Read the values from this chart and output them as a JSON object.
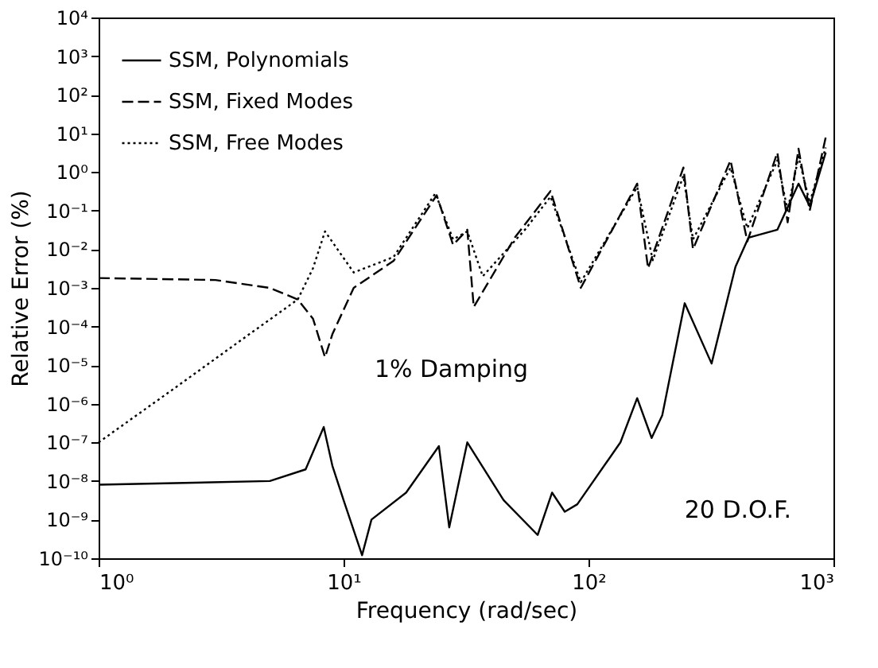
{
  "chart_data": {
    "type": "line",
    "xlabel": "Frequency (rad/sec)",
    "ylabel": "Relative Error (%)",
    "log": "xy",
    "legend": "top left",
    "xlim": [
      1,
      1000
    ],
    "ylim": [
      1e-10,
      10000
    ],
    "xticks": [
      {
        "value": 1,
        "label": "10⁰"
      },
      {
        "value": 10,
        "label": "10¹"
      },
      {
        "value": 100,
        "label": "10²"
      },
      {
        "value": 1000,
        "label": "10³"
      }
    ],
    "yticks": [
      {
        "value": 1e-10,
        "label": "10⁻¹⁰"
      },
      {
        "value": 1e-09,
        "label": "10⁻⁹"
      },
      {
        "value": 1e-08,
        "label": "10⁻⁸"
      },
      {
        "value": 1e-07,
        "label": "10⁻⁷"
      },
      {
        "value": 1e-06,
        "label": "10⁻⁶"
      },
      {
        "value": 1e-05,
        "label": "10⁻⁵"
      },
      {
        "value": 0.0001,
        "label": "10⁻⁴"
      },
      {
        "value": 0.001,
        "label": "10⁻³"
      },
      {
        "value": 0.01,
        "label": "10⁻²"
      },
      {
        "value": 0.1,
        "label": "10⁻¹"
      },
      {
        "value": 1,
        "label": "10⁰"
      },
      {
        "value": 10,
        "label": "10¹"
      },
      {
        "value": 100,
        "label": "10²"
      },
      {
        "value": 1000,
        "label": "10³"
      },
      {
        "value": 10000,
        "label": "10⁴"
      }
    ],
    "series": [
      {
        "name": "SSM, Polynomials",
        "color": "#000000",
        "line_style": "solid",
        "x": [
          1,
          5,
          7,
          8.3,
          9,
          10,
          11.9,
          13,
          18,
          24.5,
          27,
          32,
          45,
          62,
          71,
          80,
          90,
          135,
          158,
          181,
          200,
          247,
          318,
          398,
          450,
          590,
          720,
          800,
          930
        ],
        "values": [
          8e-09,
          1e-08,
          2e-08,
          2.5e-07,
          2.5e-08,
          3.2e-09,
          1.2e-10,
          1e-09,
          5e-09,
          8e-08,
          6.3e-10,
          1e-07,
          3.2e-09,
          4e-10,
          5e-09,
          1.6e-09,
          2.5e-09,
          1e-07,
          1.4e-06,
          1.3e-07,
          5e-07,
          0.0004,
          1.1e-05,
          0.0035,
          0.02,
          0.032,
          0.5,
          0.13,
          3.2
        ]
      },
      {
        "name": "SSM, Fixed Modes",
        "color": "#000000",
        "line_style": "dashed",
        "x": [
          1,
          3,
          5,
          6.5,
          7.5,
          8.4,
          9,
          11,
          16,
          24,
          28,
          32,
          34,
          50,
          70,
          93,
          158,
          175,
          244,
          267,
          380,
          445,
          590,
          650,
          720,
          800,
          930
        ],
        "values": [
          0.0018,
          0.0016,
          0.001,
          0.0005,
          0.00016,
          1.6e-05,
          6.3e-05,
          0.001,
          0.005,
          0.25,
          0.013,
          0.032,
          0.00032,
          0.02,
          0.32,
          0.001,
          0.5,
          0.0032,
          1.3,
          0.01,
          2,
          0.016,
          3.2,
          0.05,
          4,
          0.1,
          8
        ]
      },
      {
        "name": "SSM, Free Modes",
        "color": "#000000",
        "line_style": "dotted",
        "x": [
          1,
          2,
          4,
          6.5,
          7.5,
          8.4,
          11,
          16,
          23.7,
          28,
          32,
          37,
          55,
          70,
          93,
          158,
          183,
          244,
          267,
          380,
          445,
          590,
          650,
          720,
          800,
          930
        ],
        "values": [
          1e-07,
          2.3e-06,
          5.5e-05,
          0.0005,
          0.0032,
          0.029,
          0.0025,
          0.0063,
          0.28,
          0.018,
          0.029,
          0.002,
          0.032,
          0.23,
          0.0014,
          0.41,
          0.0052,
          0.79,
          0.018,
          1.3,
          0.035,
          2,
          0.1,
          2.5,
          0.16,
          4.3
        ]
      }
    ],
    "annotations": [
      "1% Damping",
      "20 D.O.F."
    ]
  }
}
